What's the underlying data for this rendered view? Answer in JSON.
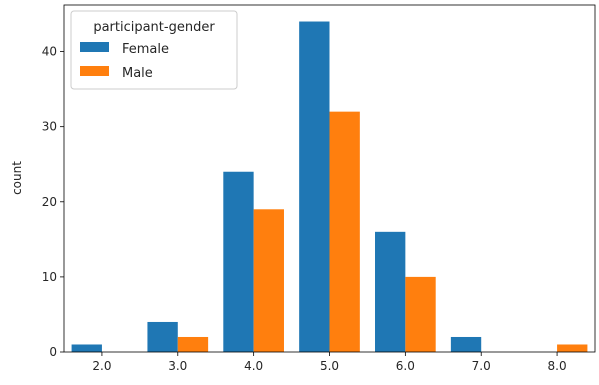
{
  "chart_data": {
    "type": "bar",
    "categories": [
      "2.0",
      "3.0",
      "4.0",
      "5.0",
      "6.0",
      "7.0",
      "8.0"
    ],
    "series": [
      {
        "name": "Female",
        "values": [
          1,
          4,
          24,
          44,
          16,
          2,
          0
        ],
        "color": "#1f77b4"
      },
      {
        "name": "Male",
        "values": [
          0,
          2,
          19,
          32,
          10,
          0,
          1
        ],
        "color": "#ff7f0e"
      }
    ],
    "title": "",
    "xlabel": "",
    "ylabel": "count",
    "ylim": [
      0,
      46.2
    ],
    "yticks": [
      0,
      10,
      20,
      30,
      40
    ],
    "grid": false,
    "legend": {
      "title": "participant-gender",
      "placement": "top-left",
      "entries": [
        "Female",
        "Male"
      ]
    }
  }
}
